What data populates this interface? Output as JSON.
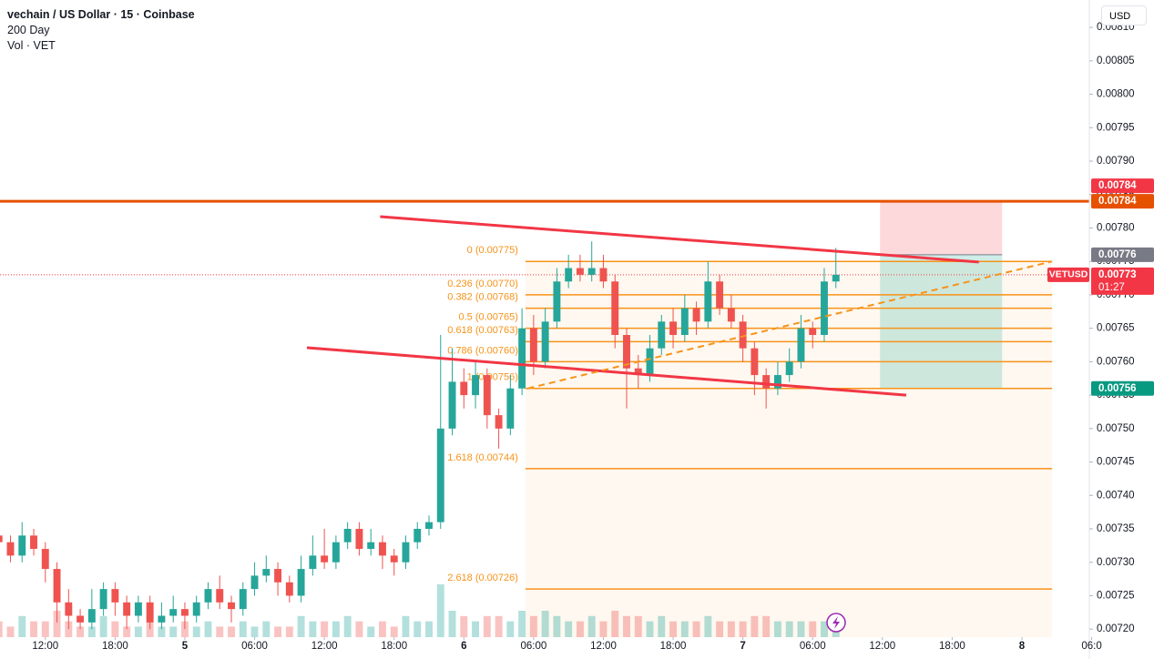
{
  "header": {
    "title": "vechain / US Dollar · 15 · Coinbase",
    "indicator": "200 Day",
    "volume_label": "Vol · VET",
    "currency": "USD"
  },
  "chart_data": {
    "type": "candlestick",
    "x": [
      8,
      9,
      10,
      11,
      12,
      13,
      14,
      15,
      16,
      17,
      18,
      19,
      20,
      21,
      22,
      23,
      24,
      25,
      26,
      27,
      28,
      29,
      30,
      31,
      32,
      33,
      34,
      35,
      36,
      37,
      38,
      39,
      40,
      41,
      42,
      43,
      44,
      45,
      46,
      47,
      48,
      49,
      50,
      51,
      52,
      53,
      54,
      55,
      56,
      57,
      58,
      59,
      60,
      61,
      62,
      63,
      64,
      65,
      66,
      67,
      68,
      69,
      70,
      71,
      72,
      73,
      74,
      75,
      76,
      77,
      78,
      79,
      80
    ],
    "open": [
      0.00734,
      0.00733,
      0.00731,
      0.00734,
      0.00732,
      0.00729,
      0.00724,
      0.00722,
      0.00721,
      0.00723,
      0.00726,
      0.00724,
      0.00722,
      0.00724,
      0.00721,
      0.00722,
      0.00723,
      0.00722,
      0.00724,
      0.00726,
      0.00724,
      0.00723,
      0.00726,
      0.00728,
      0.00729,
      0.00727,
      0.00725,
      0.00729,
      0.00731,
      0.0073,
      0.00733,
      0.00735,
      0.00732,
      0.00733,
      0.00731,
      0.0073,
      0.00733,
      0.00735,
      0.00736,
      0.0075,
      0.00757,
      0.00755,
      0.00758,
      0.00752,
      0.0075,
      0.00756,
      0.00765,
      0.0076,
      0.00766,
      0.00772,
      0.00774,
      0.00773,
      0.00774,
      0.00772,
      0.00764,
      0.00759,
      0.00758,
      0.00762,
      0.00766,
      0.00764,
      0.00768,
      0.00766,
      0.00772,
      0.00768,
      0.00766,
      0.00762,
      0.00758,
      0.00756,
      0.00758,
      0.0076,
      0.00765,
      0.00764,
      0.00772
    ],
    "high": [
      0.00736,
      0.00734,
      0.00736,
      0.00735,
      0.00733,
      0.0073,
      0.00726,
      0.00723,
      0.00726,
      0.00727,
      0.00727,
      0.00725,
      0.00725,
      0.00725,
      0.00724,
      0.00725,
      0.00724,
      0.00725,
      0.00727,
      0.00728,
      0.00725,
      0.00727,
      0.0073,
      0.00731,
      0.0073,
      0.00728,
      0.00731,
      0.00734,
      0.00735,
      0.00734,
      0.00736,
      0.00736,
      0.00735,
      0.00734,
      0.00732,
      0.00734,
      0.00736,
      0.00737,
      0.00764,
      0.00762,
      0.00759,
      0.0076,
      0.00759,
      0.00753,
      0.00758,
      0.00768,
      0.00767,
      0.00768,
      0.00774,
      0.00776,
      0.00776,
      0.00778,
      0.00776,
      0.00773,
      0.00765,
      0.00761,
      0.00764,
      0.00767,
      0.00768,
      0.0077,
      0.00769,
      0.00775,
      0.00773,
      0.0077,
      0.00767,
      0.00763,
      0.00759,
      0.0076,
      0.00762,
      0.00767,
      0.00766,
      0.00774,
      0.00777
    ],
    "low": [
      0.00731,
      0.0073,
      0.0073,
      0.00731,
      0.00727,
      0.00721,
      0.0072,
      0.0072,
      0.0072,
      0.00722,
      0.00722,
      0.0072,
      0.00721,
      0.0072,
      0.0072,
      0.00721,
      0.0072,
      0.00721,
      0.00723,
      0.00723,
      0.00721,
      0.00722,
      0.00725,
      0.00727,
      0.00725,
      0.00724,
      0.00724,
      0.00728,
      0.00729,
      0.00729,
      0.00732,
      0.00731,
      0.00731,
      0.00729,
      0.00728,
      0.00729,
      0.00732,
      0.00734,
      0.00735,
      0.00749,
      0.00753,
      0.00753,
      0.0075,
      0.00747,
      0.00749,
      0.00755,
      0.00758,
      0.00759,
      0.00765,
      0.00771,
      0.00772,
      0.00772,
      0.00771,
      0.00762,
      0.00753,
      0.00756,
      0.00757,
      0.00761,
      0.00762,
      0.00763,
      0.00764,
      0.00765,
      0.00767,
      0.00765,
      0.0076,
      0.00755,
      0.00753,
      0.00755,
      0.00757,
      0.00759,
      0.00762,
      0.00763,
      0.00771
    ],
    "close": [
      0.00733,
      0.00731,
      0.00734,
      0.00732,
      0.00729,
      0.00724,
      0.00722,
      0.00721,
      0.00723,
      0.00726,
      0.00724,
      0.00722,
      0.00724,
      0.00721,
      0.00722,
      0.00723,
      0.00722,
      0.00724,
      0.00726,
      0.00724,
      0.00723,
      0.00726,
      0.00728,
      0.00729,
      0.00727,
      0.00725,
      0.00729,
      0.00731,
      0.0073,
      0.00733,
      0.00735,
      0.00732,
      0.00733,
      0.00731,
      0.0073,
      0.00733,
      0.00735,
      0.00736,
      0.0075,
      0.00757,
      0.00755,
      0.00758,
      0.00752,
      0.0075,
      0.00756,
      0.00765,
      0.0076,
      0.00766,
      0.00772,
      0.00774,
      0.00773,
      0.00774,
      0.00772,
      0.00764,
      0.00759,
      0.00758,
      0.00762,
      0.00766,
      0.00764,
      0.00768,
      0.00766,
      0.00772,
      0.00768,
      0.00766,
      0.00762,
      0.00758,
      0.00756,
      0.00758,
      0.0076,
      0.00765,
      0.00764,
      0.00772,
      0.00773
    ],
    "volume": [
      3,
      2,
      4,
      3,
      3,
      5,
      3,
      2,
      2,
      4,
      3,
      2,
      2,
      3,
      2,
      2,
      3,
      2,
      3,
      2,
      2,
      3,
      2,
      3,
      2,
      2,
      4,
      3,
      3,
      3,
      4,
      3,
      2,
      3,
      2,
      4,
      3,
      3,
      10,
      5,
      4,
      3,
      4,
      4,
      3,
      5,
      4,
      5,
      4,
      3,
      3,
      4,
      3,
      5,
      4,
      4,
      3,
      4,
      3,
      3,
      3,
      4,
      3,
      3,
      3,
      4,
      4,
      3,
      3,
      3,
      3,
      3,
      4
    ],
    "up_color": "#26a69a",
    "down_color": "#ef5350",
    "xlim": [
      8.1,
      101.8
    ],
    "xticks": [
      {
        "value": 12,
        "label": "12:00"
      },
      {
        "value": 18,
        "label": "18:00"
      },
      {
        "value": 24,
        "label": "5"
      },
      {
        "value": 30,
        "label": "06:00"
      },
      {
        "value": 36,
        "label": "12:00"
      },
      {
        "value": 42,
        "label": "18:00"
      },
      {
        "value": 48,
        "label": "6"
      },
      {
        "value": 54,
        "label": "06:00"
      },
      {
        "value": 60,
        "label": "12:00"
      },
      {
        "value": 66,
        "label": "18:00"
      },
      {
        "value": 72,
        "label": "7"
      },
      {
        "value": 78,
        "label": "06:00"
      },
      {
        "value": 84,
        "label": "12:00"
      },
      {
        "value": 90,
        "label": "18:00"
      },
      {
        "value": 96,
        "label": "8"
      },
      {
        "value": 102,
        "label": "06:0"
      }
    ],
    "ylim": [
      0.007188,
      0.008141
    ],
    "yticks": [
      {
        "value": 0.0072,
        "label": "0.00720"
      },
      {
        "value": 0.00725,
        "label": "0.00725"
      },
      {
        "value": 0.0073,
        "label": "0.00730"
      },
      {
        "value": 0.00735,
        "label": "0.00735"
      },
      {
        "value": 0.0074,
        "label": "0.00740"
      },
      {
        "value": 0.00745,
        "label": "0.00745"
      },
      {
        "value": 0.0075,
        "label": "0.00750"
      },
      {
        "value": 0.00755,
        "label": "0.00755"
      },
      {
        "value": 0.0076,
        "label": "0.00760"
      },
      {
        "value": 0.00765,
        "label": "0.00765"
      },
      {
        "value": 0.0077,
        "label": "0.00770"
      },
      {
        "value": 0.00775,
        "label": "0.00775"
      },
      {
        "value": 0.0078,
        "label": "0.00780"
      },
      {
        "value": 0.00785,
        "label": "0.00785"
      },
      {
        "value": 0.0079,
        "label": "0.00790"
      },
      {
        "value": 0.00795,
        "label": "0.00795"
      },
      {
        "value": 0.008,
        "label": "0.00800"
      },
      {
        "value": 0.00805,
        "label": "0.00805"
      },
      {
        "value": 0.0081,
        "label": "0.00810"
      }
    ],
    "resistance": {
      "value": 0.00784,
      "color": "#e65100"
    },
    "trendlines": [
      {
        "x": [
          40.8,
          92.3
        ],
        "y": [
          0.007817,
          0.007749
        ],
        "color": "#f23645"
      },
      {
        "x": [
          34.5,
          86.05
        ],
        "y": [
          0.007621,
          0.00755
        ],
        "color": "#f23645"
      }
    ],
    "dashed_line": {
      "x": [
        53.5,
        98.6
      ],
      "y": [
        0.00756,
        0.00775
      ],
      "color": "#f7931a"
    },
    "fib": {
      "x": [
        53.3,
        98.6
      ],
      "color": "#f7931a",
      "levels": [
        {
          "value": 0.00775,
          "label": "0 (0.00775)"
        },
        {
          "value": 0.0077,
          "label": "0.236 (0.00770)"
        },
        {
          "value": 0.00768,
          "label": "0.382 (0.00768)"
        },
        {
          "value": 0.00765,
          "label": "0.5 (0.00765)"
        },
        {
          "value": 0.00763,
          "label": "0.618 (0.00763)"
        },
        {
          "value": 0.0076,
          "label": "0.786 (0.00760)"
        },
        {
          "value": 0.00756,
          "label": "1 (0.00756)"
        },
        {
          "value": 0.00744,
          "label": "1.618 (0.00744)"
        },
        {
          "value": 0.00726,
          "label": "2.618 (0.00726)"
        }
      ]
    },
    "position": {
      "x": [
        83.8,
        94.3
      ],
      "entry": 0.00776,
      "stop": 0.00784,
      "target": 0.00756
    },
    "last": {
      "symbol": "VETUSD",
      "value": 0.00773,
      "label": "0.00773",
      "countdown": "01:27"
    },
    "price_tags": [
      {
        "value": 0.00784,
        "label": "0.00784",
        "color": "#f23645"
      },
      {
        "value": 0.00784,
        "label": "0.00784",
        "color": "#e65100"
      },
      {
        "value": 0.00776,
        "label": "0.00776",
        "color": "#787b86"
      },
      {
        "value": 0.00756,
        "label": "0.00756",
        "color": "#089981"
      }
    ]
  }
}
